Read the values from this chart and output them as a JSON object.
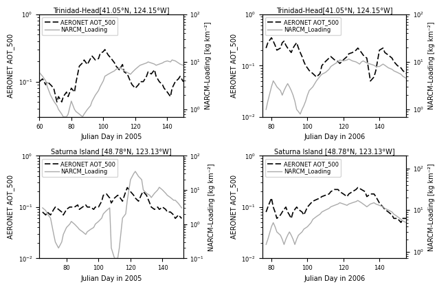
{
  "panels": [
    {
      "title": "Trinidad-Head[41.05°N, 124.15°W]",
      "xlabel": "Julian Day in 2005",
      "ylabel_left": "AERONET AOT_500",
      "ylabel_right": "NARCM-Loading [kg km⁻²]",
      "xlim": [
        60,
        150
      ],
      "ylim_left": [
        0.03,
        1.0
      ],
      "ylim_right": [
        0.7,
        100
      ],
      "xticks": [
        60,
        80,
        100,
        120,
        140
      ],
      "yticks_left": [
        0.1,
        1.0
      ],
      "yticks_right": [
        1,
        10,
        100
      ],
      "aot_x": [
        60,
        62,
        64,
        65,
        67,
        69,
        71,
        72,
        74,
        75,
        77,
        78,
        80,
        82,
        83,
        85,
        87,
        88,
        90,
        92,
        93,
        95,
        97,
        98,
        100,
        101,
        103,
        105,
        107,
        108,
        110,
        112,
        113,
        115,
        117,
        118,
        120,
        122,
        123,
        125,
        127,
        128,
        130,
        132,
        133,
        135,
        137,
        138,
        140,
        142,
        143,
        145,
        147,
        148,
        150
      ],
      "aot_y": [
        0.1,
        0.11,
        0.09,
        0.1,
        0.09,
        0.08,
        0.05,
        0.06,
        0.05,
        0.06,
        0.07,
        0.06,
        0.08,
        0.07,
        0.1,
        0.17,
        0.19,
        0.21,
        0.18,
        0.22,
        0.24,
        0.21,
        0.22,
        0.26,
        0.28,
        0.3,
        0.25,
        0.22,
        0.19,
        0.17,
        0.15,
        0.18,
        0.14,
        0.13,
        0.1,
        0.09,
        0.08,
        0.09,
        0.1,
        0.1,
        0.12,
        0.14,
        0.13,
        0.15,
        0.12,
        0.1,
        0.09,
        0.08,
        0.07,
        0.06,
        0.08,
        0.1,
        0.11,
        0.12,
        0.1
      ],
      "loading_x": [
        60,
        62,
        64,
        65,
        67,
        69,
        71,
        72,
        74,
        75,
        77,
        78,
        80,
        82,
        83,
        85,
        87,
        88,
        90,
        92,
        93,
        95,
        97,
        98,
        100,
        101,
        103,
        105,
        107,
        108,
        110,
        112,
        113,
        115,
        117,
        118,
        120,
        122,
        123,
        125,
        127,
        128,
        130,
        132,
        133,
        135,
        137,
        138,
        140,
        142,
        143,
        145,
        147,
        148,
        150
      ],
      "loading_y": [
        6,
        5,
        4,
        3,
        2,
        1.5,
        1.2,
        1.0,
        0.8,
        0.7,
        0.7,
        0.8,
        1.5,
        1.0,
        0.9,
        0.8,
        0.7,
        0.8,
        1.0,
        1.2,
        1.5,
        2.0,
        2.5,
        3.0,
        4.0,
        5.0,
        5.5,
        6.0,
        6.5,
        7.0,
        7.5,
        7.0,
        6.5,
        6.0,
        5.5,
        6.0,
        7.0,
        8.0,
        8.5,
        9.0,
        9.5,
        10.0,
        9.5,
        9.0,
        8.5,
        9.0,
        9.5,
        10.0,
        10.5,
        10.0,
        11.0,
        10.5,
        9.5,
        9.0,
        8.5
      ]
    },
    {
      "title": "Trinidad-Head[41.05°N, 124.15°W]",
      "xlabel": "Julian Day in 2006",
      "ylabel_left": "AERONET AOT_500",
      "ylabel_right": "NARCM-Loading [kg km⁻²]",
      "xlim": [
        75,
        155
      ],
      "ylim_left": [
        0.01,
        1.0
      ],
      "ylim_right": [
        0.7,
        100
      ],
      "xticks": [
        80,
        100,
        120,
        140
      ],
      "yticks_left": [
        0.01,
        0.1,
        1.0
      ],
      "yticks_right": [
        1,
        10,
        100
      ],
      "aot_x": [
        77,
        78,
        80,
        81,
        82,
        83,
        85,
        86,
        87,
        88,
        89,
        90,
        91,
        92,
        93,
        94,
        95,
        96,
        97,
        98,
        99,
        100,
        101,
        103,
        105,
        107,
        108,
        110,
        112,
        113,
        115,
        117,
        118,
        120,
        122,
        123,
        125,
        127,
        128,
        129,
        130,
        131,
        133,
        135,
        137,
        138,
        140,
        142,
        143,
        145,
        147,
        148,
        150,
        152,
        153,
        155
      ],
      "aot_y": [
        0.22,
        0.28,
        0.35,
        0.3,
        0.25,
        0.2,
        0.22,
        0.28,
        0.3,
        0.25,
        0.22,
        0.2,
        0.18,
        0.22,
        0.25,
        0.28,
        0.22,
        0.18,
        0.15,
        0.12,
        0.1,
        0.09,
        0.08,
        0.07,
        0.06,
        0.07,
        0.1,
        0.12,
        0.14,
        0.15,
        0.13,
        0.12,
        0.11,
        0.13,
        0.15,
        0.17,
        0.18,
        0.2,
        0.22,
        0.2,
        0.18,
        0.16,
        0.14,
        0.05,
        0.06,
        0.08,
        0.2,
        0.22,
        0.18,
        0.16,
        0.14,
        0.12,
        0.1,
        0.09,
        0.08,
        0.07
      ],
      "loading_x": [
        77,
        78,
        80,
        81,
        82,
        83,
        85,
        86,
        87,
        88,
        89,
        90,
        91,
        92,
        93,
        94,
        95,
        96,
        97,
        98,
        99,
        100,
        101,
        103,
        105,
        107,
        108,
        110,
        112,
        113,
        115,
        117,
        118,
        120,
        122,
        123,
        125,
        127,
        128,
        129,
        130,
        131,
        133,
        135,
        137,
        138,
        140,
        142,
        143,
        145,
        147,
        148,
        150,
        152,
        153,
        155
      ],
      "loading_y": [
        1.0,
        1.5,
        3.0,
        4.0,
        3.5,
        3.0,
        2.5,
        2.0,
        2.5,
        3.0,
        3.5,
        3.0,
        2.5,
        2.0,
        1.5,
        1.0,
        0.9,
        0.8,
        1.0,
        1.2,
        1.5,
        2.0,
        2.5,
        3.0,
        4.0,
        5.0,
        5.5,
        6.0,
        7.0,
        8.0,
        9.0,
        10.0,
        11.0,
        10.5,
        11.0,
        11.5,
        10.5,
        10.0,
        9.5,
        9.0,
        10.0,
        10.5,
        9.5,
        9.0,
        8.5,
        8.0,
        8.0,
        9.0,
        8.5,
        7.5,
        7.0,
        6.5,
        6.0,
        5.5,
        5.0,
        4.5
      ]
    },
    {
      "title": "Saturna Island [48.78°N, 123.13°W]",
      "xlabel": "Julian Day in 2005",
      "ylabel_left": "AERONET AOT_500",
      "ylabel_right": "NARCM-Loading [kg km⁻²]",
      "xlim": [
        63,
        153
      ],
      "ylim_left": [
        0.01,
        1.0
      ],
      "ylim_right": [
        0.1,
        100
      ],
      "xticks": [
        80,
        100,
        120,
        140
      ],
      "yticks_left": [
        0.01,
        0.1,
        1.0
      ],
      "yticks_right": [
        0.1,
        1,
        10,
        100
      ],
      "aot_x": [
        65,
        67,
        68,
        70,
        72,
        73,
        75,
        77,
        78,
        80,
        82,
        83,
        85,
        87,
        88,
        90,
        92,
        93,
        95,
        97,
        98,
        100,
        102,
        103,
        105,
        107,
        108,
        110,
        112,
        113,
        115,
        117,
        118,
        120,
        122,
        123,
        125,
        127,
        128,
        130,
        132,
        133,
        135,
        137,
        138,
        140,
        142,
        143,
        145,
        147,
        148,
        150,
        152
      ],
      "aot_y": [
        0.08,
        0.07,
        0.08,
        0.07,
        0.09,
        0.1,
        0.09,
        0.08,
        0.07,
        0.09,
        0.1,
        0.1,
        0.1,
        0.11,
        0.09,
        0.1,
        0.11,
        0.1,
        0.1,
        0.09,
        0.1,
        0.1,
        0.13,
        0.17,
        0.18,
        0.15,
        0.12,
        0.15,
        0.17,
        0.16,
        0.13,
        0.2,
        0.24,
        0.2,
        0.17,
        0.15,
        0.13,
        0.18,
        0.2,
        0.17,
        0.12,
        0.1,
        0.09,
        0.1,
        0.09,
        0.1,
        0.09,
        0.08,
        0.08,
        0.07,
        0.06,
        0.07,
        0.06
      ],
      "loading_x": [
        65,
        67,
        68,
        70,
        72,
        73,
        75,
        77,
        78,
        80,
        82,
        83,
        85,
        87,
        88,
        90,
        92,
        93,
        95,
        97,
        98,
        100,
        102,
        103,
        105,
        107,
        108,
        110,
        112,
        113,
        115,
        117,
        118,
        120,
        122,
        123,
        125,
        127,
        128,
        130,
        132,
        133,
        135,
        137,
        138,
        140,
        142,
        143,
        145,
        147,
        148,
        150,
        152
      ],
      "loading_y": [
        3.0,
        2.5,
        2.0,
        1.5,
        0.5,
        0.3,
        0.2,
        0.3,
        0.5,
        0.8,
        1.0,
        1.2,
        1.0,
        0.8,
        0.7,
        0.6,
        0.5,
        0.6,
        0.7,
        0.8,
        1.0,
        1.2,
        1.5,
        2.0,
        2.5,
        3.0,
        0.2,
        0.1,
        0.1,
        0.2,
        1.5,
        2.0,
        5.0,
        20.0,
        30.0,
        35.0,
        25.0,
        20.0,
        10.0,
        8.0,
        7.0,
        6.0,
        8.0,
        10.0,
        12.0,
        10.0,
        8.0,
        7.0,
        6.0,
        5.0,
        5.0,
        4.0,
        3.0
      ]
    },
    {
      "title": "Saturna Island [48.78°N, 123.13°W]",
      "xlabel": "Julian Day in 2006",
      "ylabel_left": "AERONET AOT_500",
      "ylabel_right": "NARCM-Loading [kg km⁻²]",
      "xlim": [
        75,
        155
      ],
      "ylim_left": [
        0.01,
        1.0
      ],
      "ylim_right": [
        0.7,
        200
      ],
      "xticks": [
        80,
        100,
        120,
        140
      ],
      "yticks_left": [
        0.01,
        0.1,
        1.0
      ],
      "yticks_right": [
        1,
        10,
        100
      ],
      "aot_x": [
        77,
        78,
        80,
        81,
        82,
        83,
        85,
        86,
        87,
        88,
        89,
        90,
        91,
        92,
        93,
        94,
        95,
        97,
        98,
        100,
        102,
        103,
        105,
        107,
        108,
        110,
        112,
        113,
        115,
        117,
        118,
        120,
        122,
        123,
        125,
        127,
        128,
        130,
        132,
        133,
        135,
        137,
        138,
        140,
        142,
        143,
        145,
        147,
        148,
        150,
        152,
        153,
        155
      ],
      "aot_y": [
        0.08,
        0.1,
        0.15,
        0.1,
        0.08,
        0.06,
        0.07,
        0.08,
        0.09,
        0.1,
        0.08,
        0.07,
        0.06,
        0.08,
        0.09,
        0.1,
        0.09,
        0.08,
        0.07,
        0.1,
        0.12,
        0.13,
        0.14,
        0.15,
        0.16,
        0.17,
        0.18,
        0.2,
        0.22,
        0.22,
        0.2,
        0.18,
        0.16,
        0.18,
        0.2,
        0.22,
        0.24,
        0.22,
        0.2,
        0.16,
        0.18,
        0.18,
        0.16,
        0.12,
        0.1,
        0.09,
        0.08,
        0.07,
        0.06,
        0.06,
        0.05,
        0.06,
        0.06
      ],
      "loading_x": [
        77,
        78,
        80,
        81,
        82,
        83,
        85,
        86,
        87,
        88,
        89,
        90,
        91,
        92,
        93,
        94,
        95,
        97,
        98,
        100,
        102,
        103,
        105,
        107,
        108,
        110,
        112,
        113,
        115,
        117,
        118,
        120,
        122,
        123,
        125,
        127,
        128,
        130,
        132,
        133,
        135,
        137,
        138,
        140,
        142,
        143,
        145,
        147,
        148,
        150,
        152,
        153,
        155
      ],
      "loading_y": [
        1.5,
        2.0,
        4.0,
        5.0,
        4.0,
        3.0,
        2.5,
        2.0,
        1.5,
        2.0,
        2.5,
        3.0,
        2.5,
        2.0,
        1.5,
        2.0,
        2.5,
        3.0,
        3.5,
        4.0,
        5.0,
        6.0,
        7.0,
        8.0,
        9.0,
        10.0,
        11.0,
        12.0,
        13.0,
        14.0,
        15.0,
        14.0,
        13.0,
        14.0,
        15.0,
        16.0,
        17.0,
        15.0,
        13.0,
        12.0,
        14.0,
        15.0,
        14.0,
        13.0,
        12.0,
        11.0,
        10.0,
        9.0,
        8.0,
        7.0,
        6.0,
        5.5,
        5.0
      ]
    }
  ],
  "aot_color": "#000000",
  "loading_color": "#aaaaaa",
  "aot_lw": 1.2,
  "loading_lw": 1.0,
  "legend_fontsize": 6,
  "title_fontsize": 7,
  "tick_fontsize": 6,
  "label_fontsize": 7
}
